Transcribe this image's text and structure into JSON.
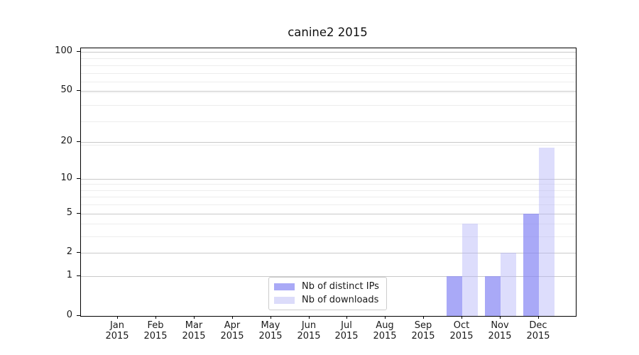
{
  "chart_data": {
    "type": "bar",
    "title": "canine2 2015",
    "categories": [
      "Jan",
      "Feb",
      "Mar",
      "Apr",
      "May",
      "Jun",
      "Jul",
      "Aug",
      "Sep",
      "Oct",
      "Nov",
      "Dec"
    ],
    "x_year_label": "2015",
    "series": [
      {
        "name": "Nb of distinct IPs",
        "values": [
          0,
          0,
          0,
          0,
          0,
          0,
          0,
          0,
          0,
          1,
          1,
          5
        ],
        "bar_color": "rgba(132,132,243,0.7)",
        "legend_color": "#a9a9f6"
      },
      {
        "name": "Nb of downloads",
        "values": [
          0,
          0,
          0,
          0,
          0,
          0,
          0,
          0,
          0,
          4,
          2,
          18
        ],
        "bar_color": "rgba(179,179,248,0.45)",
        "legend_color": "#dcdcfa"
      }
    ],
    "y_scale": "log10(1+v)",
    "y_major_ticks": [
      0,
      1,
      2,
      5,
      10,
      20,
      50,
      100
    ],
    "y_minor_gridlines": [
      3,
      4,
      6,
      7,
      8,
      9,
      19,
      29,
      39,
      49,
      59,
      69,
      79,
      89
    ],
    "y_axis_max": 106,
    "grid": "on",
    "legend_position": "lower center"
  },
  "colors": {
    "background": "#ffffff",
    "spine": "#000000",
    "grid_major": "#c9c9c9",
    "grid_minor": "#ededed",
    "text": "#1a1a1a"
  }
}
